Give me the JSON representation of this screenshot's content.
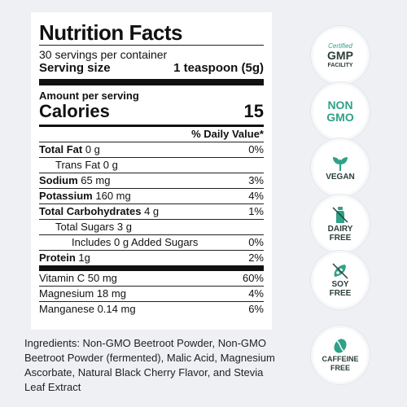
{
  "label": {
    "title": "Nutrition Facts",
    "servings": "30 servings per container",
    "serving_size_label": "Serving size",
    "serving_size_value": "1 teaspoon (5g)",
    "amount_per_serving": "Amount per serving",
    "calories_label": "Calories",
    "calories_value": "15",
    "daily_value_header": "% Daily Value*",
    "rows": [
      {
        "name": "Total Fat",
        "amount": "0 g",
        "dv": "0%"
      },
      {
        "name": "Trans Fat",
        "amount": "0 g",
        "dv": ""
      },
      {
        "name": "Sodium",
        "amount": "65 mg",
        "dv": "3%"
      },
      {
        "name": "Potassium",
        "amount": "160 mg",
        "dv": "4%"
      },
      {
        "name": "Total Carbohydrates",
        "amount": "4 g",
        "dv": "1%"
      },
      {
        "name": "Total Sugars",
        "amount": "3 g",
        "dv": ""
      },
      {
        "name": "Includes 0 g Added Sugars",
        "amount": "",
        "dv": "0%"
      },
      {
        "name": "Protein",
        "amount": "1g",
        "dv": "2%"
      },
      {
        "name": "Vitamin C",
        "amount": "50 mg",
        "dv": "60%"
      },
      {
        "name": "Magnesium",
        "amount": "18 mg",
        "dv": "4%"
      },
      {
        "name": "Manganese",
        "amount": "0.14 mg",
        "dv": "6%"
      }
    ]
  },
  "ingredients": "Ingredients: Non-GMO Beetroot Powder, Non-GMO Beetroot Powder (fermented), Malic Acid, Magnesium Ascorbate, Natural Black Cherry Flavor, and Stevia Leaf Extract",
  "badges": {
    "gmp": {
      "certified": "Certified",
      "main": "GMP",
      "sub": "FACILITY"
    },
    "non_gmo": {
      "line1": "NON",
      "line2": "GMO"
    },
    "vegan": {
      "label": "VEGAN"
    },
    "dairy_free": {
      "line1": "DAIRY",
      "line2": "FREE"
    },
    "soy_free": {
      "line1": "SOY",
      "line2": "FREE"
    },
    "caffeine_free": {
      "line1": "CAFFEINE",
      "line2": "FREE"
    }
  },
  "colors": {
    "accent": "#2fa187",
    "background": "#eef0f3",
    "text": "#111111"
  }
}
